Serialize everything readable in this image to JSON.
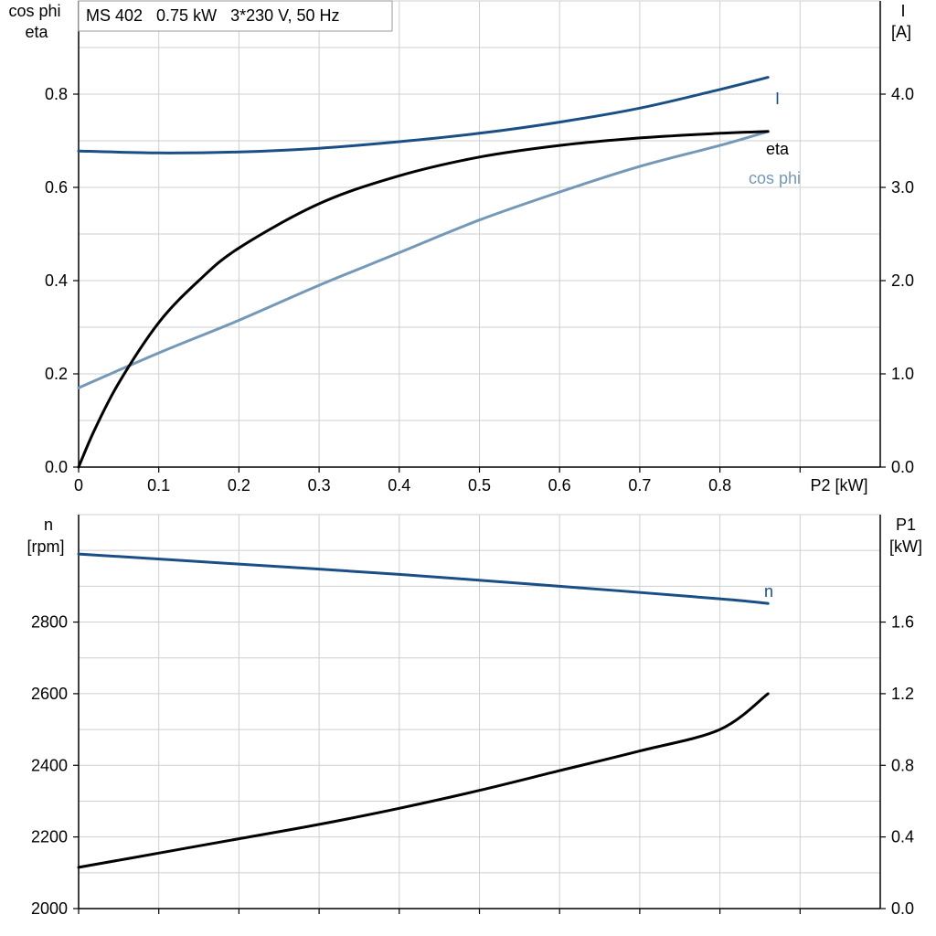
{
  "header": {
    "text": "MS 402   0.75 kW   3*230 V, 50 Hz"
  },
  "colors": {
    "current": "#1a4f86",
    "eta": "#000000",
    "cosphi": "#7499b8",
    "speed": "#1a4f86",
    "p1": "#000000",
    "grid": "#cfcfcf"
  },
  "chart_data": [
    {
      "type": "line",
      "title": "MS 402   0.75 kW   3*230 V, 50 Hz",
      "xlabel": "P2 [kW]",
      "ylabel_left": [
        "cos phi",
        "eta"
      ],
      "ylabel_right": [
        "I",
        "[A]"
      ],
      "xlim": [
        0,
        1.0
      ],
      "ylim_left": [
        0,
        1.0
      ],
      "ylim_right": [
        0,
        5.0
      ],
      "x_ticks": [
        "0",
        "0.1",
        "0.2",
        "0.3",
        "0.4",
        "0.5",
        "0.6",
        "0.7",
        "0.8"
      ],
      "y_ticks_left": [
        "0.0",
        "0.2",
        "0.4",
        "0.6",
        "0.8"
      ],
      "y_ticks_right": [
        "0.0",
        "1.0",
        "2.0",
        "3.0",
        "4.0"
      ],
      "grid": true,
      "series": [
        {
          "name": "I",
          "axis": "right",
          "x": [
            0,
            0.1,
            0.2,
            0.3,
            0.4,
            0.5,
            0.6,
            0.7,
            0.8,
            0.86
          ],
          "y": [
            3.39,
            3.37,
            3.38,
            3.42,
            3.49,
            3.58,
            3.7,
            3.85,
            4.05,
            4.18
          ]
        },
        {
          "name": "eta",
          "axis": "left",
          "x": [
            0,
            0.02,
            0.05,
            0.1,
            0.15,
            0.2,
            0.3,
            0.4,
            0.5,
            0.6,
            0.7,
            0.8,
            0.86
          ],
          "y": [
            0.0,
            0.08,
            0.18,
            0.31,
            0.4,
            0.47,
            0.565,
            0.625,
            0.665,
            0.69,
            0.706,
            0.716,
            0.72
          ]
        },
        {
          "name": "cos phi",
          "axis": "left",
          "x": [
            0,
            0.1,
            0.2,
            0.3,
            0.4,
            0.5,
            0.6,
            0.7,
            0.8,
            0.86
          ],
          "y": [
            0.17,
            0.245,
            0.315,
            0.39,
            0.46,
            0.53,
            0.59,
            0.645,
            0.69,
            0.72
          ]
        }
      ]
    },
    {
      "type": "line",
      "xlabel": "",
      "ylabel_left": [
        "n",
        "[rpm]"
      ],
      "ylabel_right": [
        "P1",
        "[kW]"
      ],
      "xlim": [
        0,
        1.0
      ],
      "ylim_left": [
        2000,
        3100
      ],
      "ylim_right": [
        0,
        2.2
      ],
      "y_ticks_left": [
        "2000",
        "2200",
        "2400",
        "2600",
        "2800"
      ],
      "y_ticks_right": [
        "0.0",
        "0.4",
        "0.8",
        "1.2",
        "1.6"
      ],
      "grid": true,
      "series": [
        {
          "name": "n",
          "axis": "left",
          "x": [
            0,
            0.2,
            0.4,
            0.6,
            0.8,
            0.86
          ],
          "y": [
            2990,
            2962,
            2933,
            2900,
            2865,
            2852
          ]
        },
        {
          "name": "",
          "axis": "right",
          "x": [
            0,
            0.1,
            0.2,
            0.3,
            0.4,
            0.5,
            0.6,
            0.7,
            0.8,
            0.86
          ],
          "y": [
            0.23,
            0.31,
            0.39,
            0.47,
            0.56,
            0.66,
            0.77,
            0.88,
            1.0,
            1.2
          ]
        }
      ]
    }
  ]
}
